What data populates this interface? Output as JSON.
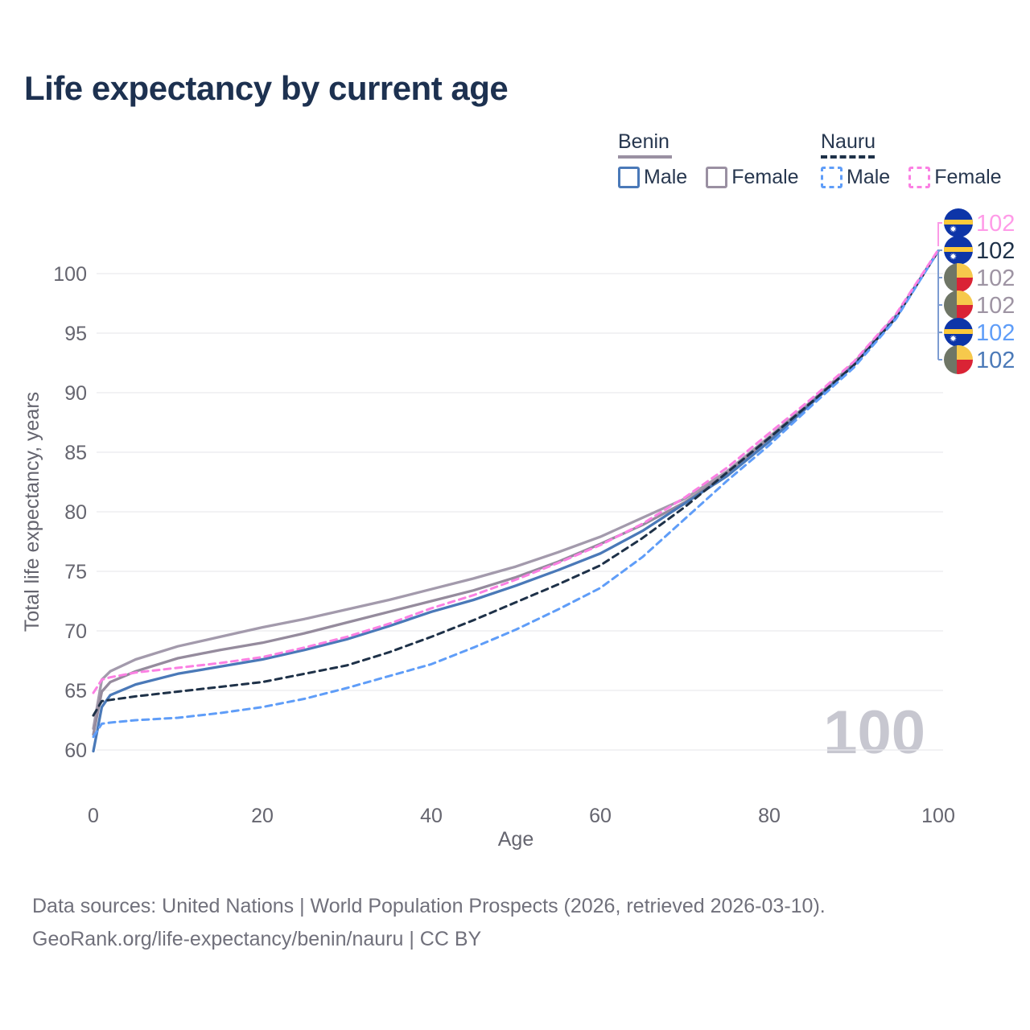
{
  "title": "Life expectancy by current age",
  "watermark": "100",
  "legend": {
    "groups": [
      {
        "name": "Benin",
        "style": "solid",
        "underline_color": "#9a90a2",
        "items": [
          {
            "label": "Male",
            "color": "#4a79b8",
            "dashed": false
          },
          {
            "label": "Female",
            "color": "#9a90a2",
            "dashed": false
          }
        ]
      },
      {
        "name": "Nauru",
        "style": "dashed",
        "underline_color": "#1e3148",
        "items": [
          {
            "label": "Male",
            "color": "#5f9df8",
            "dashed": true
          },
          {
            "label": "Female",
            "color": "#fb80e3",
            "dashed": true
          }
        ]
      }
    ]
  },
  "chart_data": {
    "type": "line",
    "title": "Life expectancy by current age",
    "xlabel": "Age",
    "ylabel": "Total life expectancy, years",
    "xlim": [
      0,
      100
    ],
    "ylim": [
      58.5,
      103
    ],
    "xticks": [
      0,
      20,
      40,
      60,
      80,
      100
    ],
    "yticks": [
      60,
      65,
      70,
      75,
      80,
      85,
      90,
      95,
      100
    ],
    "grid": "horizontal-only",
    "legend_position": "top-right",
    "ages": [
      0,
      1,
      2,
      5,
      10,
      15,
      20,
      25,
      30,
      35,
      40,
      45,
      50,
      55,
      60,
      65,
      70,
      75,
      80,
      85,
      90,
      95,
      100
    ],
    "series": [
      {
        "name": "Benin Female",
        "slug": "benin-female",
        "color": "#a39aac",
        "dashed": false,
        "values": [
          61.8,
          65.9,
          66.6,
          67.6,
          68.7,
          69.5,
          70.3,
          71.0,
          71.8,
          72.6,
          73.5,
          74.4,
          75.4,
          76.6,
          77.9,
          79.5,
          81.1,
          83.4,
          86.3,
          89.3,
          92.5,
          96.5,
          101.9
        ]
      },
      {
        "name": "Benin",
        "slug": "benin-all",
        "color": "#958b9d",
        "dashed": false,
        "values": [
          61.3,
          64.9,
          65.7,
          66.6,
          67.7,
          68.4,
          69.0,
          69.8,
          70.7,
          71.6,
          72.5,
          73.4,
          74.5,
          75.8,
          77.3,
          78.9,
          80.8,
          83.2,
          86.1,
          89.2,
          92.4,
          96.4,
          101.9
        ]
      },
      {
        "name": "Benin Male",
        "slug": "benin-male",
        "color": "#4a79b8",
        "dashed": false,
        "values": [
          59.9,
          63.6,
          64.6,
          65.5,
          66.4,
          67.0,
          67.6,
          68.4,
          69.3,
          70.4,
          71.6,
          72.6,
          73.8,
          75.1,
          76.5,
          78.4,
          80.7,
          83.0,
          85.9,
          89.1,
          92.3,
          96.4,
          101.9
        ]
      },
      {
        "name": "Nauru",
        "slug": "nauru-all",
        "color": "#1e3148",
        "dashed": true,
        "values": [
          62.9,
          64.1,
          64.2,
          64.5,
          64.9,
          65.3,
          65.7,
          66.4,
          67.1,
          68.2,
          69.5,
          70.9,
          72.4,
          73.9,
          75.5,
          77.8,
          80.4,
          83.3,
          86.2,
          89.2,
          92.3,
          96.3,
          101.9
        ]
      },
      {
        "name": "Nauru Male",
        "slug": "nauru-male",
        "color": "#5f9df8",
        "dashed": true,
        "values": [
          61.1,
          62.2,
          62.3,
          62.5,
          62.7,
          63.1,
          63.6,
          64.3,
          65.2,
          66.2,
          67.2,
          68.6,
          70.1,
          71.8,
          73.6,
          76.2,
          79.4,
          82.6,
          85.6,
          88.9,
          92.1,
          96.2,
          101.9
        ]
      },
      {
        "name": "Nauru Female",
        "slug": "nauru-female",
        "color": "#fb80e3",
        "dashed": true,
        "values": [
          64.8,
          65.9,
          66.1,
          66.5,
          66.9,
          67.3,
          67.8,
          68.6,
          69.5,
          70.6,
          71.9,
          73.0,
          74.3,
          75.7,
          77.2,
          79.0,
          81.2,
          83.7,
          86.6,
          89.5,
          92.6,
          96.6,
          102.0
        ]
      }
    ],
    "end_labels": [
      {
        "series": "Nauru Female",
        "value": "102",
        "flag": "nauru",
        "color": "#ff9be8"
      },
      {
        "series": "Nauru",
        "value": "102",
        "flag": "nauru",
        "color": "#1e3148"
      },
      {
        "series": "Benin Female",
        "value": "102",
        "flag": "benin",
        "color": "#9e94a3"
      },
      {
        "series": "Benin",
        "value": "102",
        "flag": "benin",
        "color": "#9e94a3"
      },
      {
        "series": "Nauru Male",
        "value": "102",
        "flag": "nauru",
        "color": "#5f9df8"
      },
      {
        "series": "Benin Male",
        "value": "102",
        "flag": "benin",
        "color": "#4c7ab8"
      }
    ]
  },
  "footer": {
    "line1": "Data sources: United Nations | World Population Prospects (2026, retrieved 2026-03-10).",
    "line2": "GeoRank.org/life-expectancy/benin/nauru | CC BY"
  }
}
